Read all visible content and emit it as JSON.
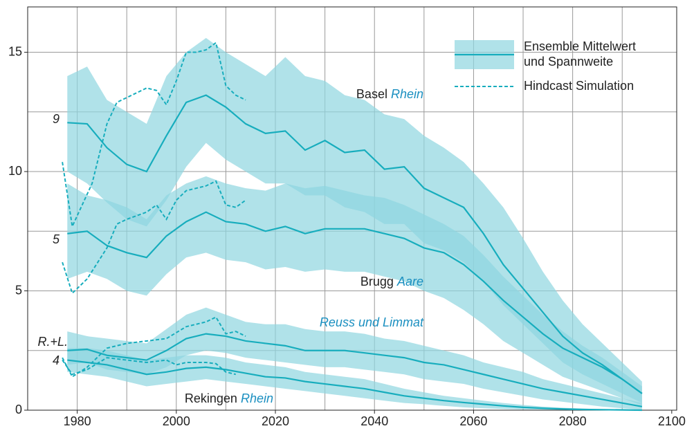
{
  "chart_data": {
    "type": "line",
    "xlim": [
      1970,
      2101
    ],
    "ylim": [
      0,
      16.9
    ],
    "xticks": [
      1980,
      2000,
      2020,
      2040,
      2060,
      2080,
      2100
    ],
    "yticks": [
      0,
      5,
      10,
      15
    ],
    "xgrid": [
      1980,
      1990,
      2000,
      2010,
      2020,
      2030,
      2040,
      2050,
      2060,
      2070,
      2080,
      2090
    ],
    "ygrid": [
      2.5,
      7.5,
      12.5
    ],
    "band_color": "#8fd6e0",
    "line_color": "#17adbd",
    "legend": {
      "band": [
        "Ensemble Mittelwert",
        "und Spannweite"
      ],
      "hindcast": "Hindcast Simulation"
    },
    "x": [
      1978,
      1982,
      1986,
      1990,
      1994,
      1998,
      2002,
      2006,
      2010,
      2014,
      2018,
      2022,
      2026,
      2030,
      2034,
      2038,
      2042,
      2046,
      2050,
      2054,
      2058,
      2062,
      2066,
      2070,
      2074,
      2078,
      2082,
      2086,
      2090,
      2094
    ],
    "stations": [
      {
        "name": "Basel",
        "river": "Rhein",
        "tag": "9",
        "mean": [
          12.05,
          12.0,
          11.0,
          10.3,
          10.0,
          11.5,
          12.9,
          13.2,
          12.7,
          12.0,
          11.6,
          11.7,
          10.9,
          11.3,
          10.8,
          10.9,
          10.1,
          10.2,
          9.3,
          8.9,
          8.5,
          7.4,
          6.1,
          5.1,
          4.1,
          3.1,
          2.4,
          1.9,
          1.3,
          0.7
        ],
        "upper": [
          14.0,
          14.4,
          13.0,
          12.5,
          12.0,
          14.0,
          15.0,
          15.6,
          15.0,
          14.5,
          14.0,
          14.8,
          14.0,
          13.8,
          13.2,
          13.0,
          12.4,
          12.2,
          11.5,
          11.0,
          10.4,
          9.5,
          8.5,
          7.2,
          5.8,
          4.6,
          3.6,
          2.8,
          2.0,
          1.2
        ],
        "lower": [
          10.0,
          9.5,
          8.7,
          8.0,
          7.7,
          8.8,
          10.2,
          11.2,
          10.5,
          10.0,
          9.5,
          9.5,
          9.0,
          9.0,
          8.5,
          8.3,
          7.8,
          7.8,
          7.0,
          6.7,
          6.2,
          5.4,
          4.4,
          3.6,
          2.8,
          2.0,
          1.5,
          1.1,
          0.7,
          0.3
        ],
        "hindcast_x": [
          1977,
          1979,
          1983,
          1986,
          1988,
          1990,
          1994,
          1996,
          1998,
          2000,
          2002,
          2004,
          2006,
          2008,
          2010,
          2012,
          2014
        ],
        "hindcast": [
          10.4,
          7.7,
          9.5,
          12.0,
          12.9,
          13.1,
          13.5,
          13.4,
          12.8,
          13.8,
          15.0,
          15.0,
          15.1,
          15.4,
          13.6,
          13.2,
          13.0
        ]
      },
      {
        "name": "Brugg",
        "river": "Aare",
        "tag": "5",
        "mean": [
          7.4,
          7.5,
          6.9,
          6.6,
          6.4,
          7.3,
          7.9,
          8.3,
          7.9,
          7.8,
          7.5,
          7.7,
          7.4,
          7.6,
          7.6,
          7.6,
          7.4,
          7.2,
          6.8,
          6.6,
          6.1,
          5.4,
          4.6,
          3.9,
          3.2,
          2.6,
          2.2,
          1.8,
          1.3,
          0.7
        ],
        "upper": [
          9.5,
          9.0,
          8.8,
          8.5,
          8.0,
          9.0,
          9.5,
          9.8,
          9.5,
          9.3,
          9.2,
          9.5,
          9.3,
          9.4,
          9.2,
          9.0,
          8.9,
          8.6,
          8.2,
          7.8,
          7.3,
          6.5,
          5.6,
          4.8,
          4.0,
          3.3,
          2.7,
          2.2,
          1.6,
          1.0
        ],
        "lower": [
          5.5,
          5.8,
          5.5,
          5.0,
          4.8,
          5.7,
          6.4,
          6.6,
          6.3,
          6.2,
          5.9,
          6.0,
          5.8,
          5.9,
          5.8,
          5.8,
          5.6,
          5.4,
          5.0,
          4.7,
          4.2,
          3.6,
          2.9,
          2.4,
          1.9,
          1.4,
          1.1,
          0.8,
          0.5,
          0.2
        ],
        "hindcast_x": [
          1977,
          1979,
          1982,
          1986,
          1988,
          1990,
          1994,
          1996,
          1998,
          2000,
          2002,
          2004,
          2006,
          2008,
          2010,
          2012,
          2014
        ],
        "hindcast": [
          6.2,
          4.9,
          5.5,
          6.8,
          7.8,
          8.0,
          8.3,
          8.6,
          8.0,
          8.8,
          9.2,
          9.3,
          9.4,
          9.6,
          8.6,
          8.5,
          8.8
        ]
      },
      {
        "river": "Reuss und Limmat",
        "tag": "R.+L.",
        "mean": [
          2.5,
          2.55,
          2.3,
          2.2,
          2.1,
          2.5,
          3.0,
          3.2,
          3.1,
          2.9,
          2.8,
          2.7,
          2.5,
          2.5,
          2.5,
          2.4,
          2.3,
          2.2,
          2.0,
          1.9,
          1.7,
          1.5,
          1.3,
          1.1,
          0.9,
          0.75,
          0.6,
          0.45,
          0.3,
          0.15
        ],
        "upper": [
          3.3,
          3.1,
          3.0,
          2.9,
          2.8,
          3.4,
          4.0,
          4.3,
          4.0,
          3.7,
          3.6,
          3.6,
          3.4,
          3.3,
          3.3,
          3.2,
          3.0,
          2.9,
          2.7,
          2.5,
          2.3,
          2.0,
          1.8,
          1.6,
          1.3,
          1.1,
          0.9,
          0.7,
          0.5,
          0.3
        ],
        "lower": [
          1.9,
          2.0,
          1.7,
          1.6,
          1.5,
          1.8,
          2.3,
          2.5,
          2.4,
          2.2,
          2.1,
          2.0,
          1.9,
          1.8,
          1.8,
          1.7,
          1.6,
          1.5,
          1.3,
          1.2,
          1.1,
          0.9,
          0.75,
          0.6,
          0.45,
          0.35,
          0.25,
          0.15,
          0.08,
          0.02
        ],
        "hindcast_x": [
          1977,
          1979,
          1982,
          1986,
          1990,
          1994,
          1998,
          2002,
          2006,
          2008,
          2010,
          2012,
          2014
        ],
        "hindcast": [
          2.2,
          1.4,
          1.8,
          2.6,
          2.8,
          2.9,
          3.0,
          3.5,
          3.7,
          3.9,
          3.2,
          3.3,
          3.1
        ]
      },
      {
        "name": "Rekingen",
        "river": "Rhein",
        "tag": "4",
        "mean": [
          2.1,
          2.0,
          1.9,
          1.7,
          1.5,
          1.6,
          1.75,
          1.8,
          1.7,
          1.55,
          1.4,
          1.35,
          1.2,
          1.1,
          1.0,
          0.9,
          0.75,
          0.6,
          0.5,
          0.4,
          0.32,
          0.25,
          0.18,
          0.12,
          0.08,
          0.05,
          0.03,
          0.02,
          0.01,
          0.0
        ],
        "upper": [
          2.6,
          2.6,
          2.5,
          2.3,
          2.1,
          2.2,
          2.3,
          2.3,
          2.2,
          2.0,
          1.9,
          1.8,
          1.6,
          1.5,
          1.4,
          1.3,
          1.1,
          0.9,
          0.75,
          0.6,
          0.5,
          0.4,
          0.3,
          0.22,
          0.15,
          0.1,
          0.07,
          0.04,
          0.02,
          0.01
        ],
        "lower": [
          1.6,
          1.5,
          1.4,
          1.2,
          1.0,
          1.1,
          1.2,
          1.3,
          1.2,
          1.1,
          1.0,
          0.9,
          0.8,
          0.7,
          0.6,
          0.5,
          0.4,
          0.3,
          0.25,
          0.18,
          0.12,
          0.08,
          0.05,
          0.03,
          0.02,
          0.01,
          0.0,
          0.0,
          0.0,
          0.0
        ],
        "hindcast_x": [
          1977,
          1979,
          1982,
          1986,
          1990,
          1994,
          1998,
          2000,
          2002,
          2006,
          2008,
          2010,
          2012
        ],
        "hindcast": [
          2.1,
          1.5,
          1.7,
          2.2,
          2.1,
          2.0,
          2.1,
          1.9,
          2.0,
          2.0,
          1.95,
          1.6,
          1.5
        ]
      }
    ]
  }
}
